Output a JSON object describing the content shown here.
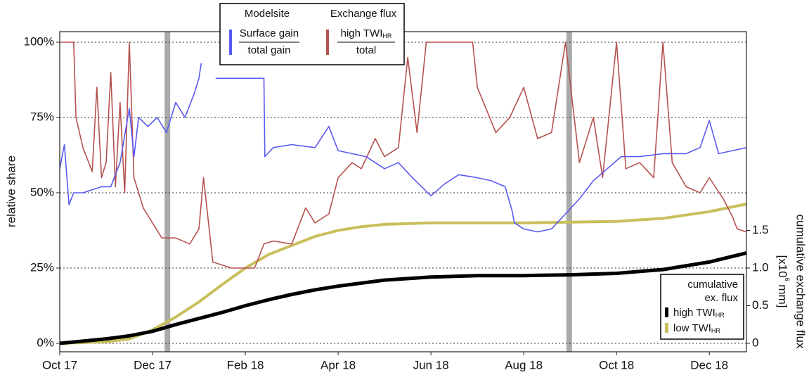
{
  "chart_data": {
    "type": "line",
    "ylabel": "relative share",
    "y2label": {
      "line1": "cumulative exchange flux",
      "line2_pre": "[x10",
      "line2_sup": "6",
      "line2_post": " mm]"
    },
    "xlim": [
      0,
      14.8
    ],
    "xticks": [
      {
        "value": 0,
        "label": "Oct 17"
      },
      {
        "value": 2,
        "label": "Dec 17"
      },
      {
        "value": 4,
        "label": "Feb 18"
      },
      {
        "value": 6,
        "label": "Apr 18"
      },
      {
        "value": 8,
        "label": "Jun 18"
      },
      {
        "value": 10,
        "label": "Aug 18"
      },
      {
        "value": 12,
        "label": "Oct 18"
      },
      {
        "value": 14,
        "label": "Dec 18"
      }
    ],
    "ylim": [
      -2.8,
      103.5
    ],
    "yticks": [
      {
        "value": 0,
        "label": "0%"
      },
      {
        "value": 25,
        "label": "25%"
      },
      {
        "value": 50,
        "label": "50%"
      },
      {
        "value": 75,
        "label": "75%"
      },
      {
        "value": 100,
        "label": "100%"
      }
    ],
    "y2lim": [
      -0.112,
      4.14
    ],
    "y2ticks": [
      0,
      0.5,
      {
        "value": 1,
        "label": "1.0"
      },
      1.5
    ],
    "grid": true,
    "highlight_x": [
      2.32,
      10.98
    ],
    "highlight_color": "#aaaaaa",
    "legend_top": {
      "titles": [
        "Modelsite",
        "Exchange flux"
      ]
    },
    "legend_bottom": {
      "title1": "cumulative",
      "title2": "ex. flux"
    },
    "series": [
      {
        "name": "Surface gain",
        "denominator": "total gain",
        "color": "#5a5af2",
        "width": 1.6,
        "x": [
          0,
          0.1,
          0.2,
          0.3,
          0.5,
          0.7,
          0.9,
          1.1,
          1.3,
          1.5,
          1.6,
          1.7,
          1.9,
          2.1,
          2.3,
          2.5,
          2.7,
          2.9,
          3.0,
          3.05,
          3.2,
          3.36,
          3.6,
          4.0,
          4.4,
          4.42,
          4.6,
          5.0,
          5.5,
          5.8,
          6.0,
          6.3,
          6.6,
          7.0,
          7.3,
          7.6,
          8.0,
          8.3,
          8.6,
          9.0,
          9.3,
          9.6,
          9.75,
          9.8,
          10.0,
          10.3,
          10.6,
          10.9,
          11.2,
          11.5,
          11.8,
          12.1,
          12.5,
          13.0,
          13.5,
          13.8,
          14.0,
          14.2,
          14.5,
          14.8
        ],
        "values": [
          58,
          66,
          46,
          50,
          50,
          51,
          52,
          52,
          60,
          78,
          62,
          75,
          72,
          75,
          70,
          80,
          75,
          83,
          88,
          93,
          null,
          88,
          88,
          88,
          88,
          62,
          65,
          66,
          65,
          72,
          64,
          63,
          62,
          58,
          60,
          55,
          49,
          53,
          56,
          55,
          54,
          52,
          44,
          40,
          38,
          37,
          38,
          43,
          48,
          54,
          58,
          62,
          62,
          63,
          63,
          65,
          74,
          63,
          64,
          65
        ]
      },
      {
        "name": "high TWI",
        "sub": "HR",
        "denominator": "total",
        "color": "#b5524f",
        "width": 1.6,
        "x": [
          0,
          0.3,
          0.35,
          0.5,
          0.7,
          0.8,
          0.9,
          1.0,
          1.1,
          1.2,
          1.3,
          1.4,
          1.5,
          1.6,
          1.8,
          2.0,
          2.2,
          2.5,
          2.8,
          3.0,
          3.1,
          3.3,
          3.7,
          4.0,
          4.2,
          4.4,
          4.6,
          5.0,
          5.3,
          5.5,
          5.8,
          6.0,
          6.3,
          6.5,
          6.8,
          7.0,
          7.3,
          7.5,
          7.7,
          7.9,
          8.0,
          8.5,
          8.9,
          9.0,
          9.4,
          9.7,
          10.0,
          10.3,
          10.6,
          10.9,
          11.2,
          11.5,
          11.7,
          12.0,
          12.2,
          12.5,
          12.8,
          13.0,
          13.2,
          13.5,
          13.8,
          14.0,
          14.3,
          14.5,
          14.6,
          14.8
        ],
        "values": [
          100,
          100,
          75,
          65,
          57,
          85,
          55,
          60,
          90,
          52,
          80,
          50,
          100,
          55,
          45,
          40,
          35,
          35,
          33,
          38,
          55,
          27,
          25,
          25,
          25,
          33,
          34,
          33,
          45,
          40,
          43,
          55,
          60,
          58,
          68,
          62,
          65,
          95,
          70,
          100,
          100,
          100,
          100,
          85,
          70,
          75,
          85,
          68,
          70,
          100,
          60,
          75,
          55,
          100,
          58,
          60,
          55,
          100,
          60,
          52,
          50,
          55,
          48,
          42,
          38,
          37
        ]
      },
      {
        "name": "high TWI",
        "sub": "HR",
        "axis": "y2",
        "color": "#000000",
        "width": 5,
        "x": [
          0,
          1,
          1.5,
          2,
          2.5,
          3,
          3.5,
          4,
          4.5,
          5,
          5.5,
          6,
          6.5,
          7,
          8,
          9,
          10,
          11,
          12,
          13,
          14,
          14.8
        ],
        "values": [
          0,
          0.06,
          0.1,
          0.16,
          0.25,
          0.33,
          0.41,
          0.5,
          0.58,
          0.65,
          0.71,
          0.76,
          0.8,
          0.84,
          0.88,
          0.9,
          0.9,
          0.91,
          0.93,
          0.98,
          1.08,
          1.2
        ]
      },
      {
        "name": "low TWI",
        "sub": "HR",
        "axis": "y2",
        "color": "#c9bf5c",
        "width": 4,
        "x": [
          0,
          1,
          1.5,
          2,
          2.5,
          3,
          3.5,
          4,
          4.5,
          5,
          5.5,
          6,
          6.5,
          7,
          8,
          9,
          10,
          11,
          12,
          13,
          14,
          14.8
        ],
        "values": [
          0,
          0.02,
          0.06,
          0.18,
          0.35,
          0.55,
          0.78,
          1.0,
          1.18,
          1.3,
          1.42,
          1.5,
          1.55,
          1.58,
          1.6,
          1.6,
          1.6,
          1.61,
          1.62,
          1.66,
          1.75,
          1.85
        ]
      }
    ]
  }
}
